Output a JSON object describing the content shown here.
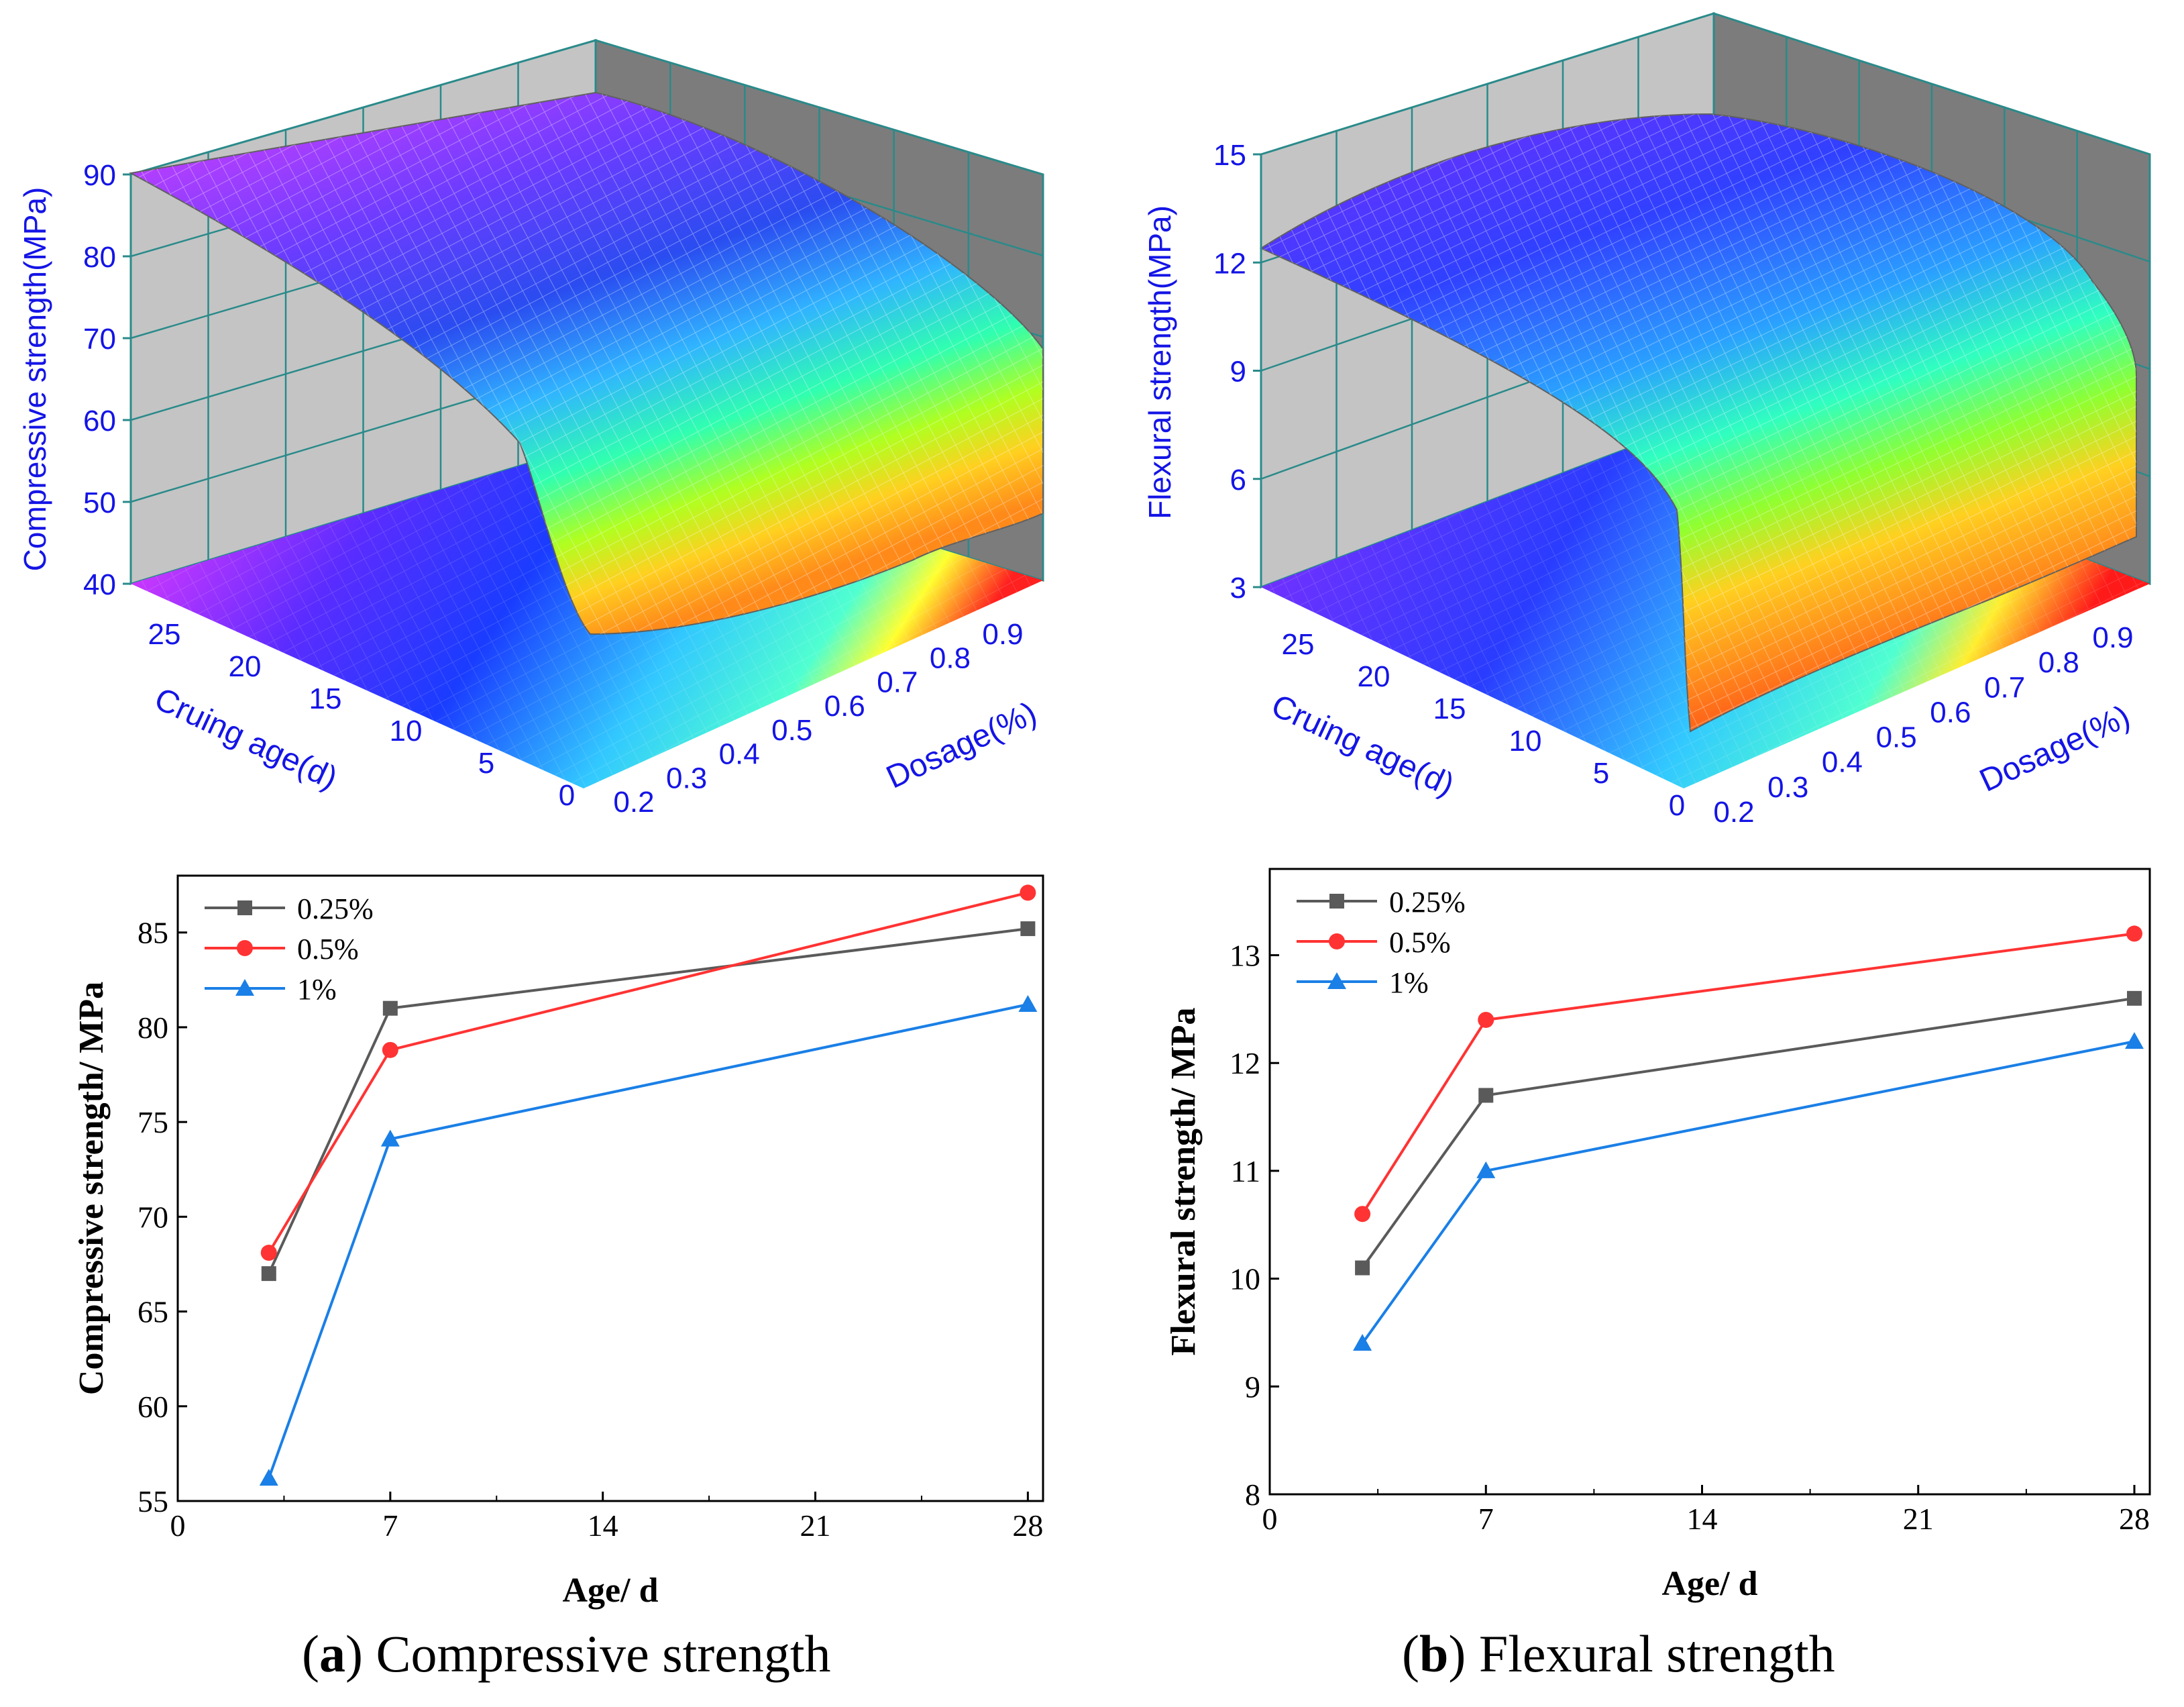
{
  "colors": {
    "series_0_25": "#5a5a5a",
    "series_0_5": "#ff3333",
    "series_1": "#1a7fe6",
    "axis3d_text": "#1414e6",
    "wall_left": "#c4c4c4",
    "wall_right": "#7c7c7c",
    "grid3d": "#2a8a8a"
  },
  "surface_a": {
    "z_label": "Compressive strength(MPa)",
    "z_ticks": [
      "40",
      "50",
      "60",
      "70",
      "80",
      "90"
    ],
    "age_label": "Cruing age(d)",
    "age_ticks": [
      "0",
      "5",
      "10",
      "15",
      "20",
      "25"
    ],
    "dosage_label": "Dosage(%)",
    "dosage_ticks": [
      "0.2",
      "0.3",
      "0.4",
      "0.5",
      "0.6",
      "0.7",
      "0.8",
      "0.9"
    ]
  },
  "surface_b": {
    "z_label": "Flexural strength(MPa)",
    "z_ticks": [
      "3",
      "6",
      "9",
      "12",
      "15"
    ],
    "age_label": "Cruing age(d)",
    "age_ticks": [
      "0",
      "5",
      "10",
      "15",
      "20",
      "25"
    ],
    "dosage_label": "Dosage(%)",
    "dosage_ticks": [
      "0.2",
      "0.3",
      "0.4",
      "0.5",
      "0.6",
      "0.7",
      "0.8",
      "0.9"
    ]
  },
  "chart_data": [
    {
      "type": "line",
      "title": "",
      "xlabel": "Age/  d",
      "ylabel": "Compressive strength/  MPa",
      "xlim": [
        0,
        28.5
      ],
      "ylim": [
        55,
        88
      ],
      "xticks": [
        0,
        7,
        14,
        21,
        28
      ],
      "yticks": [
        55,
        60,
        65,
        70,
        75,
        80,
        85
      ],
      "series": [
        {
          "name": "0.25%",
          "marker": "square",
          "x": [
            3,
            7,
            28
          ],
          "values": [
            67.0,
            81.0,
            85.2
          ]
        },
        {
          "name": "0.5%",
          "marker": "circle",
          "x": [
            3,
            7,
            28
          ],
          "values": [
            68.1,
            78.8,
            87.1
          ]
        },
        {
          "name": "1%",
          "marker": "triangle",
          "x": [
            3,
            7,
            28
          ],
          "values": [
            56.2,
            74.1,
            81.2
          ]
        }
      ]
    },
    {
      "type": "line",
      "title": "",
      "xlabel": "Age/  d",
      "ylabel": "Flexural strength/  MPa",
      "xlim": [
        0,
        28.5
      ],
      "ylim": [
        8,
        13.8
      ],
      "xticks": [
        0,
        7,
        14,
        21,
        28
      ],
      "yticks": [
        8,
        9,
        10,
        11,
        12,
        13
      ],
      "series": [
        {
          "name": "0.25%",
          "marker": "square",
          "x": [
            3,
            7,
            28
          ],
          "values": [
            10.1,
            11.7,
            12.6
          ]
        },
        {
          "name": "0.5%",
          "marker": "circle",
          "x": [
            3,
            7,
            28
          ],
          "values": [
            10.6,
            12.4,
            13.2
          ]
        },
        {
          "name": "1%",
          "marker": "triangle",
          "x": [
            3,
            7,
            28
          ],
          "values": [
            9.4,
            11.0,
            12.2
          ]
        }
      ]
    }
  ],
  "captions": {
    "a_letter": "a",
    "a_text": " Compressive strength",
    "b_letter": "b",
    "b_text": " Flexural strength"
  }
}
